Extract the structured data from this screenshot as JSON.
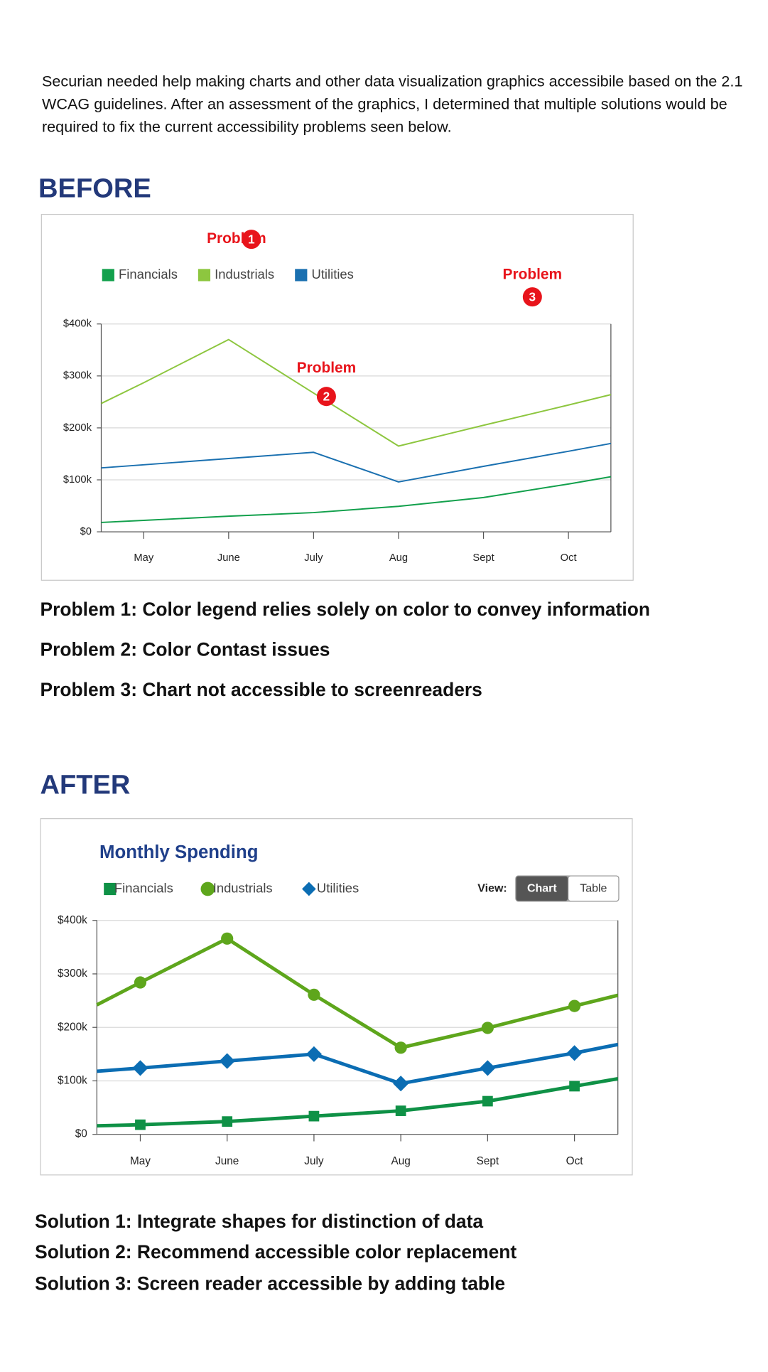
{
  "intro": "Securian needed help making charts and other data visualization graphics accessibile based on the 2.1 WCAG guidelines. After an assessment of the graphics, I determined that multiple solutions would be required to fix the current accessibility problems seen below.",
  "before_heading": "BEFORE",
  "problems": [
    "Problem 1: Color legend relies solely on color to convey information",
    "Problem 2: Color Contast issues",
    "Problem 3: Chart not accessible to screenreaders"
  ],
  "after_heading": "AFTER",
  "solutions": [
    "Solution 1: Integrate shapes for distinction of data",
    "Solution 2: Recommend accessible color replacement",
    "Solution 3: Screen reader accessible by adding table"
  ],
  "chart_data": [
    {
      "type": "line",
      "legend_marker": "square",
      "grid": true,
      "categories": [
        null,
        "May",
        "June",
        "July",
        "Aug",
        "Sept",
        "Oct",
        null
      ],
      "series": [
        {
          "name": "Financials",
          "color": "#12a04c",
          "values": [
            18000,
            22000,
            30000,
            37000,
            49000,
            66000,
            92000,
            106000
          ]
        },
        {
          "name": "Industrials",
          "color": "#8dc63f",
          "values": [
            247000,
            287000,
            370000,
            267000,
            165000,
            205000,
            244000,
            264000
          ]
        },
        {
          "name": "Utilities",
          "color": "#1a70b0",
          "values": [
            123000,
            129000,
            141000,
            153000,
            96000,
            126000,
            155000,
            170000
          ]
        }
      ],
      "ylim": [
        0,
        400000
      ],
      "yticks": [
        {
          "value": 0,
          "label": "$0"
        },
        {
          "value": 100000,
          "label": "$100k"
        },
        {
          "value": 200000,
          "label": "$200k"
        },
        {
          "value": 300000,
          "label": "$300k"
        },
        {
          "value": 400000,
          "label": "$400k"
        }
      ],
      "annotations": [
        {
          "text": "Problem",
          "number": "1"
        },
        {
          "text": "Problem",
          "number": "2"
        },
        {
          "text": "Problem",
          "number": "3"
        }
      ]
    },
    {
      "type": "line",
      "title": "Monthly Spending",
      "grid": true,
      "categories": [
        null,
        "May",
        "June",
        "July",
        "Aug",
        "Sept",
        "Oct",
        null
      ],
      "series": [
        {
          "name": "Financials",
          "color": "#0f9146",
          "marker": "square",
          "values": [
            16000,
            18000,
            24000,
            34000,
            44000,
            62000,
            90000,
            104000
          ]
        },
        {
          "name": "Industrials",
          "color": "#5ea61c",
          "marker": "circle",
          "values": [
            242000,
            284000,
            366000,
            261000,
            162000,
            199000,
            240000,
            260000
          ]
        },
        {
          "name": "Utilities",
          "color": "#0b6db3",
          "marker": "diamond",
          "values": [
            118000,
            124000,
            137000,
            150000,
            95000,
            124000,
            152000,
            168000
          ]
        }
      ],
      "ylim": [
        0,
        400000
      ],
      "yticks": [
        {
          "value": 0,
          "label": "$0"
        },
        {
          "value": 100000,
          "label": "$100k"
        },
        {
          "value": 200000,
          "label": "$200k"
        },
        {
          "value": 300000,
          "label": "$300k"
        },
        {
          "value": 400000,
          "label": "$400k"
        }
      ],
      "view_toggle": {
        "label": "View:",
        "options": [
          "Chart",
          "Table"
        ],
        "selected": 0
      }
    }
  ]
}
